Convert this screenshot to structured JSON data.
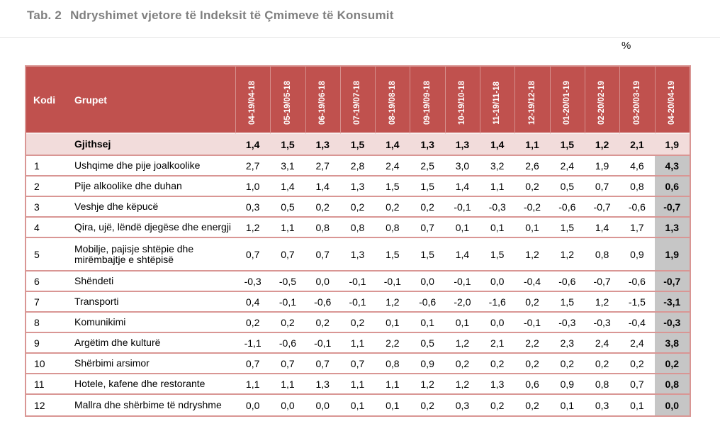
{
  "page": {
    "title_prefix": "Tab. 2",
    "title_text": "Ndryshimet vjetore të Indeksit të Çmimeve të Konsumit",
    "unit_label": "%"
  },
  "colors": {
    "header_bg": "#c0514e",
    "total_row_bg": "#f2dcdb",
    "last_col_bg": "#c6c6c6",
    "grid_line": "#d99694",
    "title_gray": "#7f7f7f"
  },
  "table": {
    "code_header": "Kodi",
    "group_header": "Grupet",
    "period_headers": [
      "04-19/04-18",
      "05-19/05-18",
      "06-19/06-18",
      "07-19/07-18",
      "08-19/08-18",
      "09-19/09-18",
      "10-19/10-18",
      "11-19/11-18",
      "12-19/12-18",
      "01-20/01-19",
      "02-20/02-19",
      "03-20/03-19",
      "04-20/04-19"
    ],
    "total_row": {
      "label": "Gjithsej",
      "values": [
        "1,4",
        "1,5",
        "1,3",
        "1,5",
        "1,4",
        "1,3",
        "1,3",
        "1,4",
        "1,1",
        "1,5",
        "1,2",
        "2,1",
        "1,9"
      ]
    },
    "rows": [
      {
        "code": "1",
        "label": "Ushqime dhe pije joalkoolike",
        "values": [
          "2,7",
          "3,1",
          "2,7",
          "2,8",
          "2,4",
          "2,5",
          "3,0",
          "3,2",
          "2,6",
          "2,4",
          "1,9",
          "4,6",
          "4,3"
        ]
      },
      {
        "code": "2",
        "label": "Pije alkoolike dhe duhan",
        "values": [
          "1,0",
          "1,4",
          "1,4",
          "1,3",
          "1,5",
          "1,5",
          "1,4",
          "1,1",
          "0,2",
          "0,5",
          "0,7",
          "0,8",
          "0,6"
        ]
      },
      {
        "code": "3",
        "label": "Veshje dhe këpucë",
        "values": [
          "0,3",
          "0,5",
          "0,2",
          "0,2",
          "0,2",
          "0,2",
          "-0,1",
          "-0,3",
          "-0,2",
          "-0,6",
          "-0,7",
          "-0,6",
          "-0,7"
        ]
      },
      {
        "code": "4",
        "label": "Qira, ujë, lëndë djegëse dhe energji",
        "values": [
          "1,2",
          "1,1",
          "0,8",
          "0,8",
          "0,8",
          "0,7",
          "0,1",
          "0,1",
          "0,1",
          "1,5",
          "1,4",
          "1,7",
          "1,3"
        ]
      },
      {
        "code": "5",
        "label": "Mobilje, pajisje shtëpie dhe mirëmbajtje e shtëpisë",
        "values": [
          "0,7",
          "0,7",
          "0,7",
          "1,3",
          "1,5",
          "1,5",
          "1,4",
          "1,5",
          "1,2",
          "1,2",
          "0,8",
          "0,9",
          "1,9"
        ],
        "tall": true
      },
      {
        "code": "6",
        "label": "Shëndeti",
        "values": [
          "-0,3",
          "-0,5",
          "0,0",
          "-0,1",
          "-0,1",
          "0,0",
          "-0,1",
          "0,0",
          "-0,4",
          "-0,6",
          "-0,7",
          "-0,6",
          "-0,7"
        ]
      },
      {
        "code": "7",
        "label": "Transporti",
        "values": [
          "0,4",
          "-0,1",
          "-0,6",
          "-0,1",
          "1,2",
          "-0,6",
          "-2,0",
          "-1,6",
          "0,2",
          "1,5",
          "1,2",
          "-1,5",
          "-3,1"
        ]
      },
      {
        "code": "8",
        "label": "Komunikimi",
        "values": [
          "0,2",
          "0,2",
          "0,2",
          "0,2",
          "0,1",
          "0,1",
          "0,1",
          "0,0",
          "-0,1",
          "-0,3",
          "-0,3",
          "-0,4",
          "-0,3"
        ]
      },
      {
        "code": "9",
        "label": "Argëtim dhe kulturë",
        "values": [
          "-1,1",
          "-0,6",
          "-0,1",
          "1,1",
          "2,2",
          "0,5",
          "1,2",
          "2,1",
          "2,2",
          "2,3",
          "2,4",
          "2,4",
          "3,8"
        ]
      },
      {
        "code": "10",
        "label": "Shërbimi arsimor",
        "values": [
          "0,7",
          "0,7",
          "0,7",
          "0,7",
          "0,8",
          "0,9",
          "0,2",
          "0,2",
          "0,2",
          "0,2",
          "0,2",
          "0,2",
          "0,2"
        ]
      },
      {
        "code": "11",
        "label": "Hotele, kafene dhe restorante",
        "values": [
          "1,1",
          "1,1",
          "1,3",
          "1,1",
          "1,1",
          "1,2",
          "1,2",
          "1,3",
          "0,6",
          "0,9",
          "0,8",
          "0,7",
          "0,8"
        ]
      },
      {
        "code": "12",
        "label": "Mallra dhe shërbime të ndryshme",
        "values": [
          "0,0",
          "0,0",
          "0,0",
          "0,1",
          "0,1",
          "0,2",
          "0,3",
          "0,2",
          "0,2",
          "0,1",
          "0,3",
          "0,1",
          "0,0"
        ]
      }
    ]
  }
}
